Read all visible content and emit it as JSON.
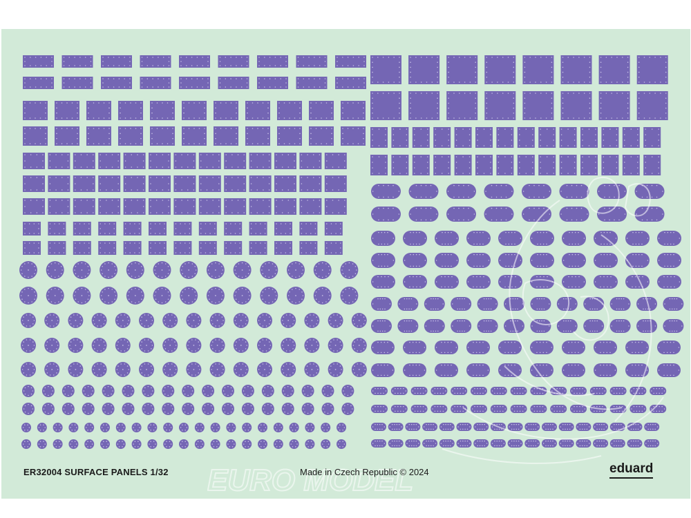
{
  "sheet": {
    "title": "ER32004 SURFACE PANELS 1/32",
    "made_in": "Made in Czech Republic  ©  2024",
    "brand": "eduard",
    "watermark": "EURO MODEL"
  },
  "colors": {
    "sheet_background": "#d2ead8",
    "panel_fill": "#7466b4",
    "rivet": "#c4bde6"
  },
  "panel_types": [
    "rectangular",
    "square",
    "circular",
    "oval"
  ]
}
